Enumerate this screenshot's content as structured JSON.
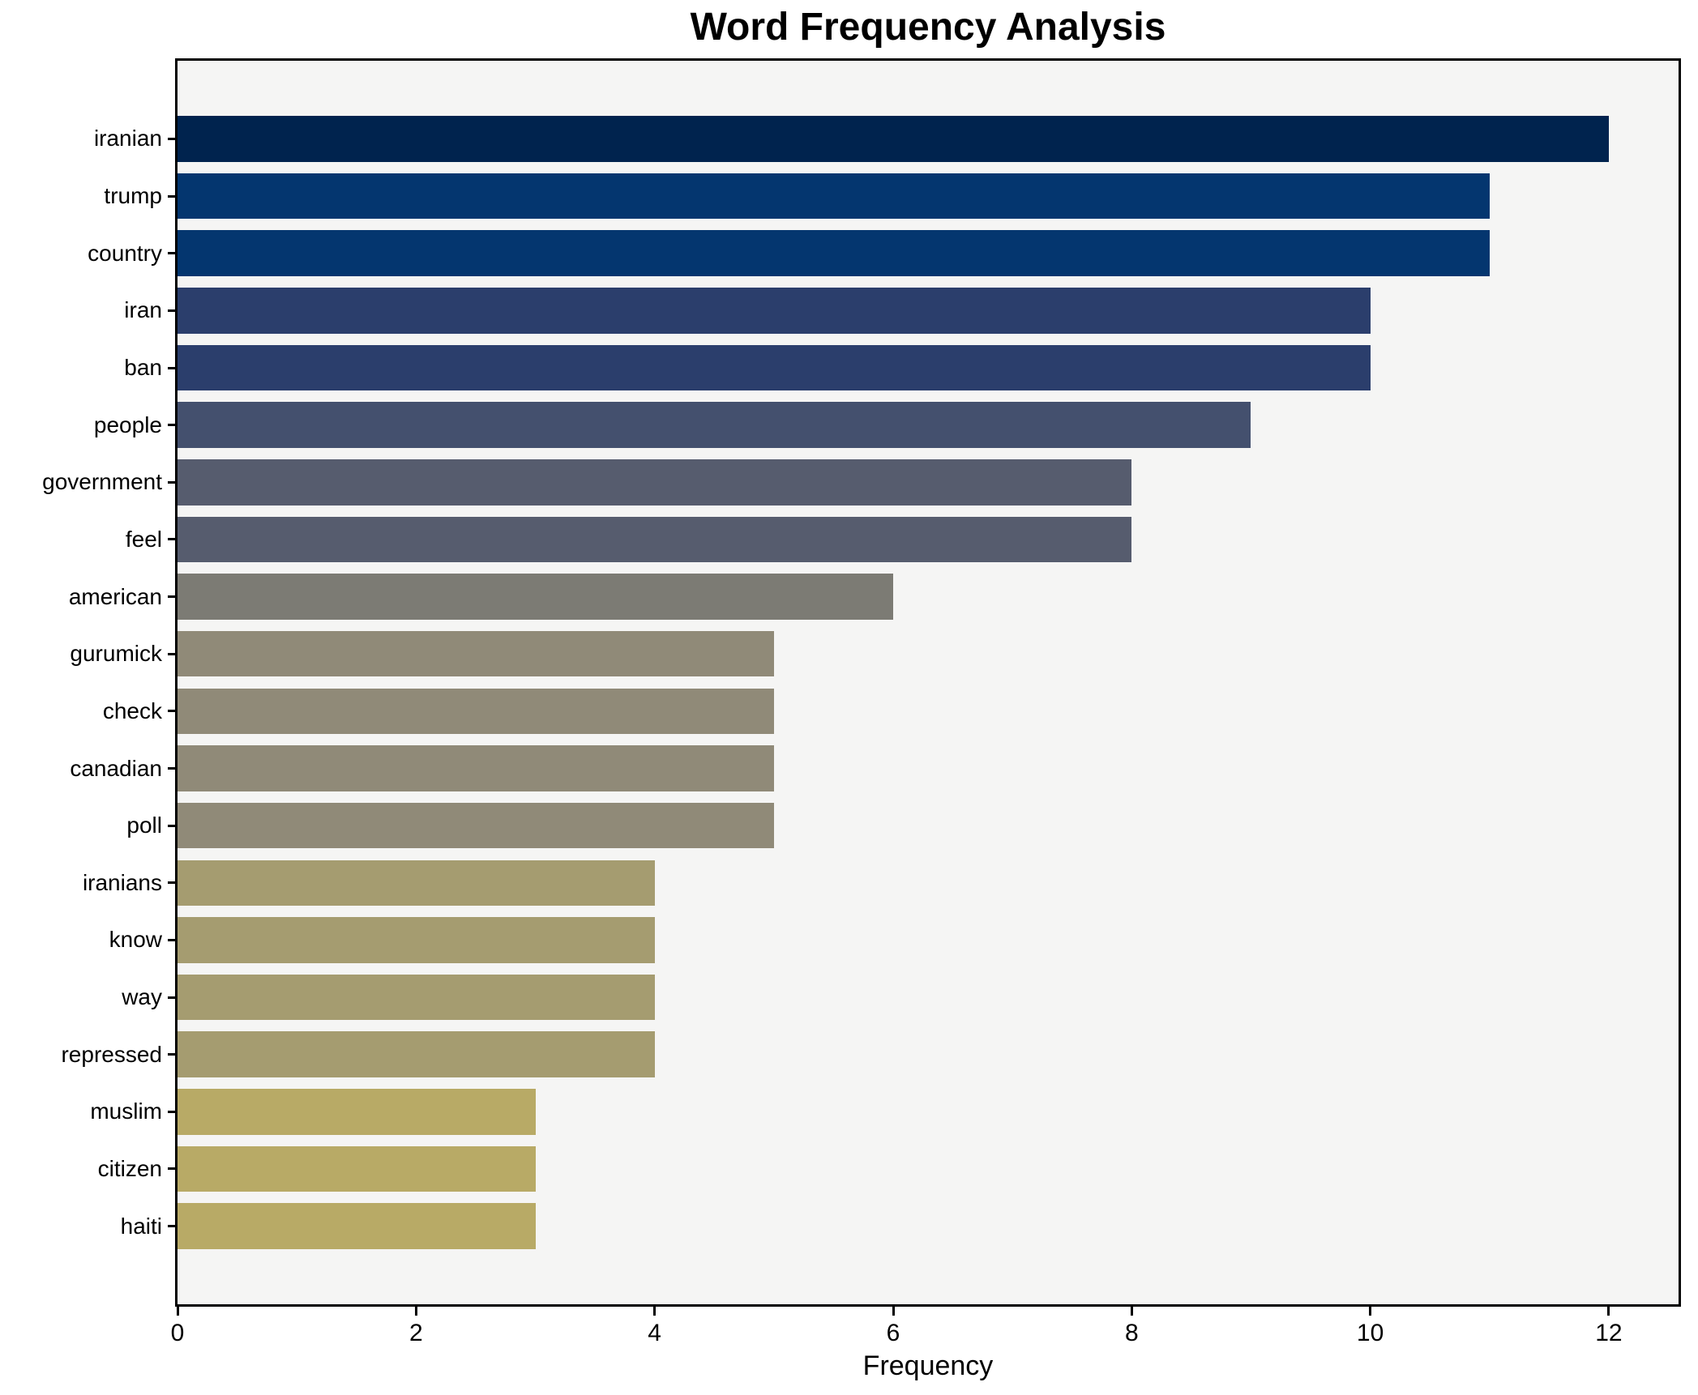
{
  "chart_data": {
    "type": "bar",
    "orientation": "horizontal",
    "title": "Word Frequency Analysis",
    "xlabel": "Frequency",
    "ylabel": "",
    "categories": [
      "iranian",
      "trump",
      "country",
      "iran",
      "ban",
      "people",
      "government",
      "feel",
      "american",
      "gurumick",
      "check",
      "canadian",
      "poll",
      "iranians",
      "know",
      "way",
      "repressed",
      "muslim",
      "citizen",
      "haiti"
    ],
    "values": [
      12,
      11,
      11,
      10,
      10,
      9,
      8,
      8,
      6,
      5,
      5,
      5,
      5,
      4,
      4,
      4,
      4,
      3,
      3,
      3
    ],
    "bar_colors": [
      "#00234e",
      "#04366f",
      "#04366f",
      "#2b3e6c",
      "#2b3e6c",
      "#44506e",
      "#565c6e",
      "#565c6e",
      "#7c7b74",
      "#908a78",
      "#908a78",
      "#908a78",
      "#908a78",
      "#a59c70",
      "#a59c70",
      "#a59c70",
      "#a59c70",
      "#b8aa66",
      "#b8aa66",
      "#b8aa66"
    ],
    "colormap": "cividis",
    "xticks": [
      0,
      2,
      4,
      6,
      8,
      10,
      12
    ],
    "xlim": [
      0,
      12.585
    ],
    "grid": false,
    "legend": "none",
    "plot_background": "#f5f5f4",
    "figure_background": "#ffffff",
    "spine_color": "#000000"
  }
}
